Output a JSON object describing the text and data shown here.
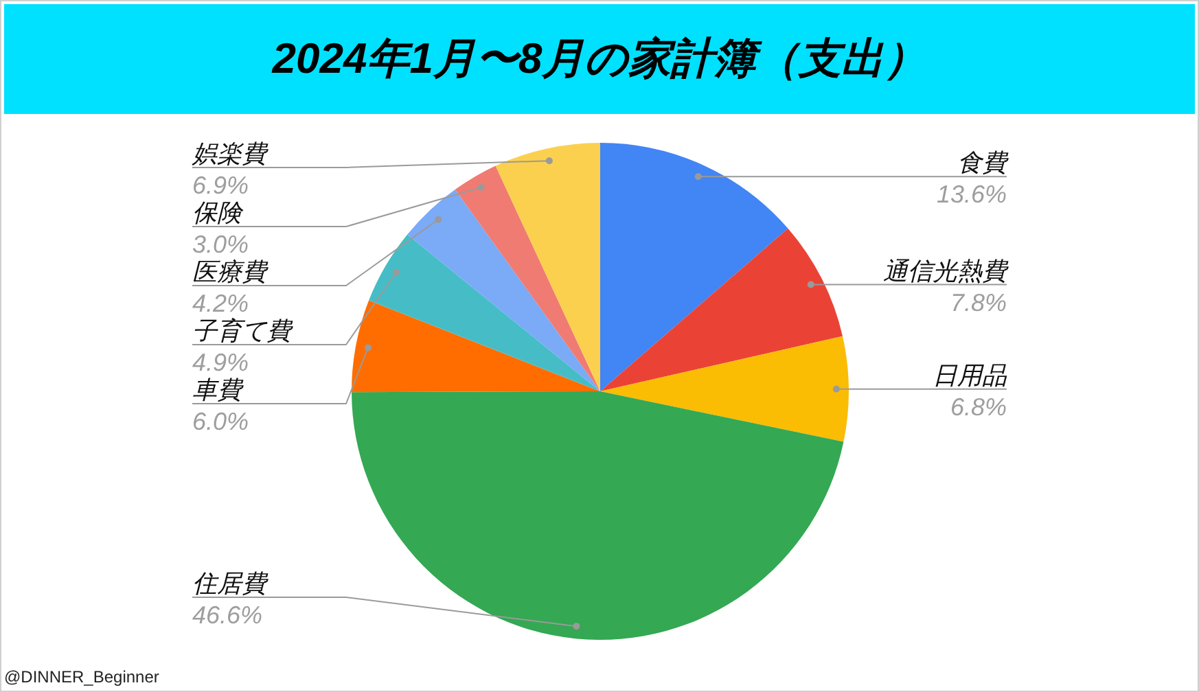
{
  "chart_data": {
    "type": "pie",
    "title": "2024年1月〜8月の家計簿（支出）",
    "categories": [
      "食費",
      "通信光熱費",
      "日用品",
      "住居費",
      "車費",
      "子育て費",
      "医療費",
      "保険",
      "娯楽費"
    ],
    "values": [
      13.6,
      7.8,
      6.8,
      46.6,
      6.0,
      4.9,
      4.2,
      3.0,
      6.9
    ],
    "colors": [
      "#4285f4",
      "#ea4335",
      "#fbbc04",
      "#34a853",
      "#ff6d01",
      "#46bdc6",
      "#7baaf7",
      "#f07b72",
      "#fcd04f"
    ],
    "value_labels": [
      "13.6%",
      "7.8%",
      "6.8%",
      "46.6%",
      "6.0%",
      "4.9%",
      "4.2%",
      "3.0%",
      "6.9%"
    ],
    "legend": false,
    "annotations": [
      "@DINNER_Beginner"
    ]
  }
}
